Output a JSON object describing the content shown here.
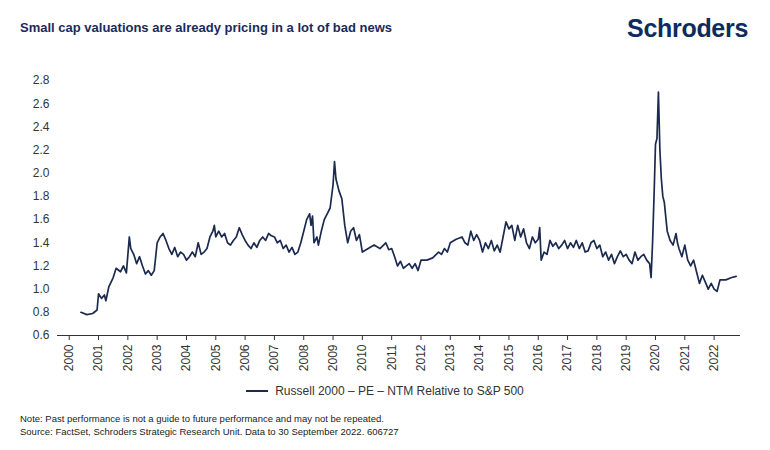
{
  "chart_data": {
    "type": "line",
    "title": "Small cap valuations are already pricing in a lot of bad news",
    "logo": "Schroders",
    "notes": [
      "Note: Past performance is not a guide to future performance and may not be repeated.",
      "Source: FactSet, Schroders Strategic Research Unit. Data to 30 September 2022. 606727"
    ],
    "legend": "bottom",
    "grid": false,
    "xlim": [
      1999.6,
      2022.9
    ],
    "xticks": [
      2000,
      2001,
      2002,
      2003,
      2004,
      2005,
      2006,
      2007,
      2008,
      2009,
      2010,
      2011,
      2012,
      2013,
      2014,
      2015,
      2016,
      2017,
      2018,
      2019,
      2020,
      2021,
      2022
    ],
    "ylim": [
      0.6,
      2.8
    ],
    "yticks": [
      0.6,
      0.8,
      {
        "value": 1,
        "label": "1.0"
      },
      1.2,
      1.4,
      1.6,
      1.8,
      {
        "value": 2,
        "label": "2.0"
      },
      2.2,
      2.4,
      2.6,
      2.8
    ],
    "x": [
      2000.4,
      2000.6,
      2000.8,
      2000.95,
      2001.0,
      2001.1,
      2001.2,
      2001.25,
      2001.35,
      2001.5,
      2001.6,
      2001.75,
      2001.85,
      2001.95,
      2002.05,
      2002.1,
      2002.2,
      2002.3,
      2002.4,
      2002.5,
      2002.6,
      2002.7,
      2002.8,
      2002.9,
      2003.0,
      2003.1,
      2003.2,
      2003.3,
      2003.4,
      2003.5,
      2003.6,
      2003.7,
      2003.8,
      2003.9,
      2004.0,
      2004.1,
      2004.2,
      2004.3,
      2004.4,
      2004.5,
      2004.6,
      2004.7,
      2004.8,
      2004.9,
      2004.95,
      2005.0,
      2005.1,
      2005.2,
      2005.3,
      2005.4,
      2005.5,
      2005.6,
      2005.7,
      2005.8,
      2005.9,
      2006.0,
      2006.1,
      2006.2,
      2006.3,
      2006.4,
      2006.5,
      2006.6,
      2006.7,
      2006.8,
      2006.9,
      2007.0,
      2007.1,
      2007.2,
      2007.3,
      2007.4,
      2007.5,
      2007.6,
      2007.7,
      2007.8,
      2007.9,
      2008.0,
      2008.1,
      2008.2,
      2008.25,
      2008.3,
      2008.35,
      2008.45,
      2008.5,
      2008.6,
      2008.7,
      2008.8,
      2008.9,
      2009.0,
      2009.05,
      2009.1,
      2009.2,
      2009.3,
      2009.4,
      2009.5,
      2009.6,
      2009.7,
      2009.8,
      2009.9,
      2010.0,
      2010.2,
      2010.4,
      2010.6,
      2010.8,
      2010.9,
      2011.0,
      2011.1,
      2011.2,
      2011.3,
      2011.4,
      2011.5,
      2011.6,
      2011.7,
      2011.8,
      2011.9,
      2012.0,
      2012.2,
      2012.4,
      2012.6,
      2012.7,
      2012.8,
      2012.9,
      2013.0,
      2013.2,
      2013.4,
      2013.5,
      2013.6,
      2013.7,
      2013.8,
      2013.9,
      2014.0,
      2014.1,
      2014.2,
      2014.3,
      2014.4,
      2014.5,
      2014.6,
      2014.7,
      2014.8,
      2014.9,
      2015.0,
      2015.1,
      2015.2,
      2015.3,
      2015.4,
      2015.5,
      2015.6,
      2015.7,
      2015.8,
      2015.9,
      2016.0,
      2016.05,
      2016.1,
      2016.2,
      2016.3,
      2016.4,
      2016.5,
      2016.6,
      2016.7,
      2016.8,
      2016.9,
      2017.0,
      2017.1,
      2017.2,
      2017.3,
      2017.4,
      2017.5,
      2017.6,
      2017.7,
      2017.8,
      2017.9,
      2018.0,
      2018.1,
      2018.2,
      2018.3,
      2018.4,
      2018.5,
      2018.6,
      2018.7,
      2018.8,
      2018.9,
      2019.0,
      2019.1,
      2019.2,
      2019.3,
      2019.4,
      2019.5,
      2019.6,
      2019.7,
      2019.8,
      2019.85,
      2019.9,
      2019.95,
      2020.0,
      2020.05,
      2020.1,
      2020.15,
      2020.2,
      2020.25,
      2020.3,
      2020.4,
      2020.5,
      2020.6,
      2020.7,
      2020.75,
      2020.8,
      2020.9,
      2021.0,
      2021.1,
      2021.2,
      2021.3,
      2021.4,
      2021.5,
      2021.6,
      2021.7,
      2021.8,
      2021.9,
      2022.0,
      2022.1,
      2022.2,
      2022.4,
      2022.6,
      2022.75
    ],
    "series": [
      {
        "name": "Russell 2000 – PE – NTM Relative to S&P 500",
        "color": "#1b2a4e",
        "values": [
          0.8,
          0.78,
          0.79,
          0.82,
          0.96,
          0.92,
          0.95,
          0.9,
          1.02,
          1.1,
          1.18,
          1.15,
          1.2,
          1.14,
          1.45,
          1.35,
          1.3,
          1.22,
          1.28,
          1.2,
          1.13,
          1.16,
          1.12,
          1.16,
          1.4,
          1.45,
          1.48,
          1.42,
          1.35,
          1.3,
          1.36,
          1.28,
          1.32,
          1.3,
          1.25,
          1.28,
          1.32,
          1.28,
          1.4,
          1.3,
          1.32,
          1.35,
          1.45,
          1.5,
          1.55,
          1.45,
          1.5,
          1.45,
          1.48,
          1.4,
          1.38,
          1.42,
          1.45,
          1.53,
          1.47,
          1.42,
          1.38,
          1.35,
          1.4,
          1.36,
          1.42,
          1.45,
          1.42,
          1.48,
          1.46,
          1.45,
          1.4,
          1.42,
          1.35,
          1.38,
          1.32,
          1.36,
          1.3,
          1.32,
          1.4,
          1.5,
          1.6,
          1.65,
          1.55,
          1.63,
          1.4,
          1.45,
          1.38,
          1.5,
          1.6,
          1.65,
          1.7,
          1.9,
          2.1,
          1.95,
          1.85,
          1.78,
          1.55,
          1.4,
          1.5,
          1.53,
          1.42,
          1.47,
          1.32,
          1.35,
          1.38,
          1.35,
          1.4,
          1.34,
          1.35,
          1.28,
          1.2,
          1.24,
          1.18,
          1.2,
          1.22,
          1.18,
          1.22,
          1.16,
          1.25,
          1.25,
          1.27,
          1.32,
          1.3,
          1.35,
          1.32,
          1.4,
          1.43,
          1.45,
          1.4,
          1.38,
          1.5,
          1.42,
          1.47,
          1.42,
          1.32,
          1.4,
          1.35,
          1.42,
          1.33,
          1.38,
          1.32,
          1.45,
          1.58,
          1.52,
          1.55,
          1.42,
          1.55,
          1.45,
          1.52,
          1.4,
          1.35,
          1.45,
          1.4,
          1.43,
          1.53,
          1.25,
          1.32,
          1.3,
          1.42,
          1.37,
          1.4,
          1.35,
          1.38,
          1.42,
          1.35,
          1.4,
          1.36,
          1.42,
          1.35,
          1.4,
          1.32,
          1.33,
          1.4,
          1.42,
          1.35,
          1.38,
          1.28,
          1.32,
          1.25,
          1.3,
          1.22,
          1.28,
          1.33,
          1.28,
          1.3,
          1.25,
          1.22,
          1.32,
          1.25,
          1.28,
          1.3,
          1.25,
          1.22,
          1.1,
          1.4,
          1.8,
          2.25,
          2.3,
          2.7,
          2.2,
          1.95,
          1.8,
          1.75,
          1.5,
          1.42,
          1.38,
          1.48,
          1.4,
          1.35,
          1.28,
          1.38,
          1.25,
          1.2,
          1.25,
          1.15,
          1.05,
          1.12,
          1.06,
          1.0,
          1.05,
          1.0,
          0.98,
          1.08,
          1.08,
          1.1,
          1.11
        ]
      }
    ]
  }
}
